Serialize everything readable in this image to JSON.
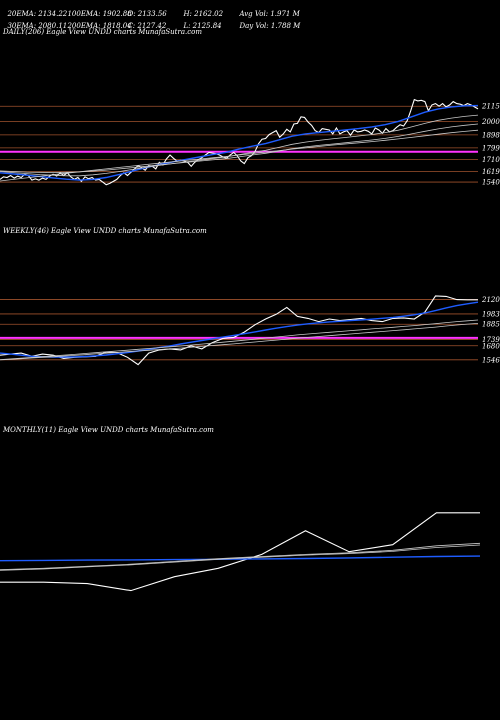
{
  "header": {
    "ema20": "20EMA: 2134.22",
    "ema100": "100EMA: 1902.88",
    "open": "O: 2133.56",
    "high": "H: 2162.02",
    "avg_vol": "Avg Vol: 1.971 M",
    "ema30": "30EMA: 2080.11",
    "ema200": "200EMA: 1818.04",
    "close": "C: 2127.42",
    "low": "L: 2125.84",
    "day_vol": "Day Vol: 1.788 M"
  },
  "colors": {
    "background": "#000000",
    "price_line": "#ffffff",
    "ema_blue": "#1e5cff",
    "ema_grey": "#c8c8c8",
    "level_brown": "#a0522d",
    "level_magenta": "#ff33ff"
  },
  "chart_data": [
    {
      "type": "line",
      "title": "DAILY(206) Eagle   View  UNDD charts MunafaSutra.com",
      "levels": [
        2115,
        2000,
        1898,
        1799,
        1710,
        1619,
        1540
      ],
      "ylim": [
        1480,
        2200
      ],
      "magenta_level": 1770,
      "series": [
        {
          "role": "price",
          "values": [
            1560,
            1580,
            1575,
            1590,
            1570,
            1585,
            1575,
            1600,
            1590,
            1555,
            1565,
            1555,
            1570,
            1560,
            1585,
            1600,
            1585,
            1610,
            1590,
            1610,
            1580,
            1560,
            1575,
            1545,
            1580,
            1565,
            1575,
            1555,
            1560,
            1540,
            1520,
            1530,
            1545,
            1560,
            1590,
            1610,
            1590,
            1615,
            1640,
            1665,
            1650,
            1630,
            1665,
            1660,
            1640,
            1690,
            1670,
            1715,
            1745,
            1720,
            1700,
            1705,
            1700,
            1690,
            1660,
            1690,
            1710,
            1725,
            1745,
            1765,
            1760,
            1755,
            1745,
            1730,
            1720,
            1745,
            1765,
            1740,
            1700,
            1680,
            1725,
            1740,
            1770,
            1830,
            1865,
            1870,
            1900,
            1915,
            1930,
            1880,
            1905,
            1940,
            1920,
            1980,
            1985,
            2035,
            2030,
            1995,
            1970,
            1930,
            1915,
            1945,
            1940,
            1935,
            1905,
            1950,
            1905,
            1920,
            1930,
            1895,
            1935,
            1920,
            1925,
            1935,
            1925,
            1905,
            1950,
            1935,
            1910,
            1945,
            1920,
            1930,
            1955,
            1975,
            1965,
            2005,
            2080,
            2165,
            2155,
            2160,
            2150,
            2080,
            2125,
            2135,
            2115,
            2135,
            2110,
            2125,
            2150,
            2135,
            2130,
            2120,
            2135,
            2125,
            2110,
            2095
          ]
        },
        {
          "role": "ema-blue",
          "values": [
            1610,
            1602,
            1592,
            1583,
            1572,
            1562,
            1555,
            1560,
            1575,
            1598,
            1625,
            1650,
            1672,
            1693,
            1712,
            1730,
            1748,
            1765,
            1790,
            1812,
            1832,
            1860,
            1888,
            1905,
            1915,
            1925,
            1935,
            1945,
            1958,
            1975,
            2000,
            2035,
            2070,
            2095,
            2110,
            2118,
            2120
          ]
        },
        {
          "role": "ema-grey",
          "values": [
            1620,
            1612,
            1604,
            1597,
            1592,
            1588,
            1588,
            1595,
            1606,
            1620,
            1636,
            1652,
            1667,
            1680,
            1693,
            1706,
            1718,
            1730,
            1748,
            1765,
            1781,
            1803,
            1826,
            1843,
            1856,
            1867,
            1878,
            1889,
            1901,
            1915,
            1933,
            1958,
            1985,
            2008,
            2025,
            2038,
            2048
          ]
        },
        {
          "role": "ema-grey2",
          "values": [
            1625,
            1620,
            1616,
            1614,
            1613,
            1614,
            1617,
            1623,
            1631,
            1640,
            1650,
            1660,
            1670,
            1680,
            1689,
            1699,
            1708,
            1717,
            1731,
            1745,
            1758,
            1775,
            1793,
            1807,
            1818,
            1828,
            1838,
            1848,
            1859,
            1871,
            1886,
            1905,
            1925,
            1943,
            1958,
            1970,
            1980
          ]
        },
        {
          "role": "ema-grey3",
          "values": [
            1548,
            1560,
            1572,
            1584,
            1596,
            1607,
            1618,
            1629,
            1640,
            1651,
            1662,
            1673,
            1683,
            1694,
            1704,
            1714,
            1724,
            1734,
            1745,
            1756,
            1767,
            1778,
            1790,
            1800,
            1810,
            1820,
            1829,
            1838,
            1847,
            1857,
            1867,
            1879,
            1891,
            1903,
            1914,
            1924,
            1933
          ]
        }
      ]
    },
    {
      "type": "line",
      "title": "WEEKLY(46) Eagle   View  UNDD charts MunafaSutra.com",
      "levels": [
        2120,
        1983,
        1885,
        1739,
        1680,
        1546
      ],
      "ylim": [
        1430,
        2230
      ],
      "magenta_level": 1755,
      "series": [
        {
          "role": "price",
          "values": [
            1590,
            1600,
            1610,
            1580,
            1600,
            1590,
            1560,
            1570,
            1575,
            1580,
            1620,
            1615,
            1570,
            1500,
            1610,
            1640,
            1650,
            1640,
            1680,
            1650,
            1710,
            1750,
            1760,
            1810,
            1880,
            1935,
            1980,
            2045,
            1960,
            1940,
            1910,
            1935,
            1920,
            1930,
            1940,
            1920,
            1910,
            1940,
            1945,
            1935,
            2000,
            2155,
            2150,
            2120,
            2118,
            2118
          ]
        },
        {
          "role": "ema-blue",
          "values": [
            1610,
            1600,
            1590,
            1580,
            1575,
            1572,
            1572,
            1574,
            1578,
            1584,
            1592,
            1603,
            1616,
            1630,
            1646,
            1662,
            1679,
            1697,
            1714,
            1730,
            1746,
            1762,
            1778,
            1795,
            1812,
            1830,
            1847,
            1862,
            1877,
            1889,
            1899,
            1907,
            1913,
            1920,
            1926,
            1933,
            1941,
            1950,
            1961,
            1975,
            1992,
            2015,
            2040,
            2062,
            2080,
            2095
          ]
        },
        {
          "role": "ema-grey",
          "values": [
            1548,
            1555,
            1562,
            1569,
            1576,
            1583,
            1590,
            1598,
            1606,
            1614,
            1622,
            1630,
            1638,
            1646,
            1654,
            1662,
            1670,
            1678,
            1687,
            1696,
            1705,
            1714,
            1723,
            1733,
            1743,
            1753,
            1763,
            1773,
            1783,
            1792,
            1800,
            1808,
            1816,
            1824,
            1832,
            1840,
            1848,
            1856,
            1864,
            1872,
            1881,
            1890,
            1900,
            1910,
            1918,
            1925
          ]
        },
        {
          "role": "ema-grey2",
          "values": [
            1545,
            1551,
            1557,
            1563,
            1569,
            1575,
            1581,
            1588,
            1595,
            1602,
            1609,
            1616,
            1623,
            1630,
            1637,
            1644,
            1651,
            1658,
            1666,
            1674,
            1682,
            1690,
            1698,
            1707,
            1716,
            1725,
            1734,
            1743,
            1752,
            1760,
            1768,
            1776,
            1784,
            1792,
            1800,
            1808,
            1816,
            1824,
            1832,
            1840,
            1849,
            1858,
            1868,
            1878,
            1886,
            1893
          ]
        }
      ]
    },
    {
      "type": "line",
      "title": "MONTHLY(11) Eagle   View  UNDD charts MunafaSutra.com",
      "levels": [],
      "ylim": [
        1400,
        2300
      ],
      "magenta_level": null,
      "series": [
        {
          "role": "price",
          "values": [
            1600,
            1600,
            1590,
            1540,
            1640,
            1700,
            1800,
            1970,
            1820,
            1870,
            2100,
            2100
          ]
        },
        {
          "role": "ema-blue",
          "values": [
            1755,
            1757,
            1759,
            1761,
            1763,
            1765,
            1768,
            1771,
            1775,
            1780,
            1785,
            1788
          ]
        },
        {
          "role": "ema-grey",
          "values": [
            1690,
            1700,
            1715,
            1730,
            1750,
            1770,
            1785,
            1800,
            1812,
            1830,
            1862,
            1880
          ]
        },
        {
          "role": "ema-grey2",
          "values": [
            1685,
            1695,
            1710,
            1725,
            1745,
            1765,
            1780,
            1795,
            1806,
            1822,
            1850,
            1868
          ]
        }
      ]
    }
  ]
}
